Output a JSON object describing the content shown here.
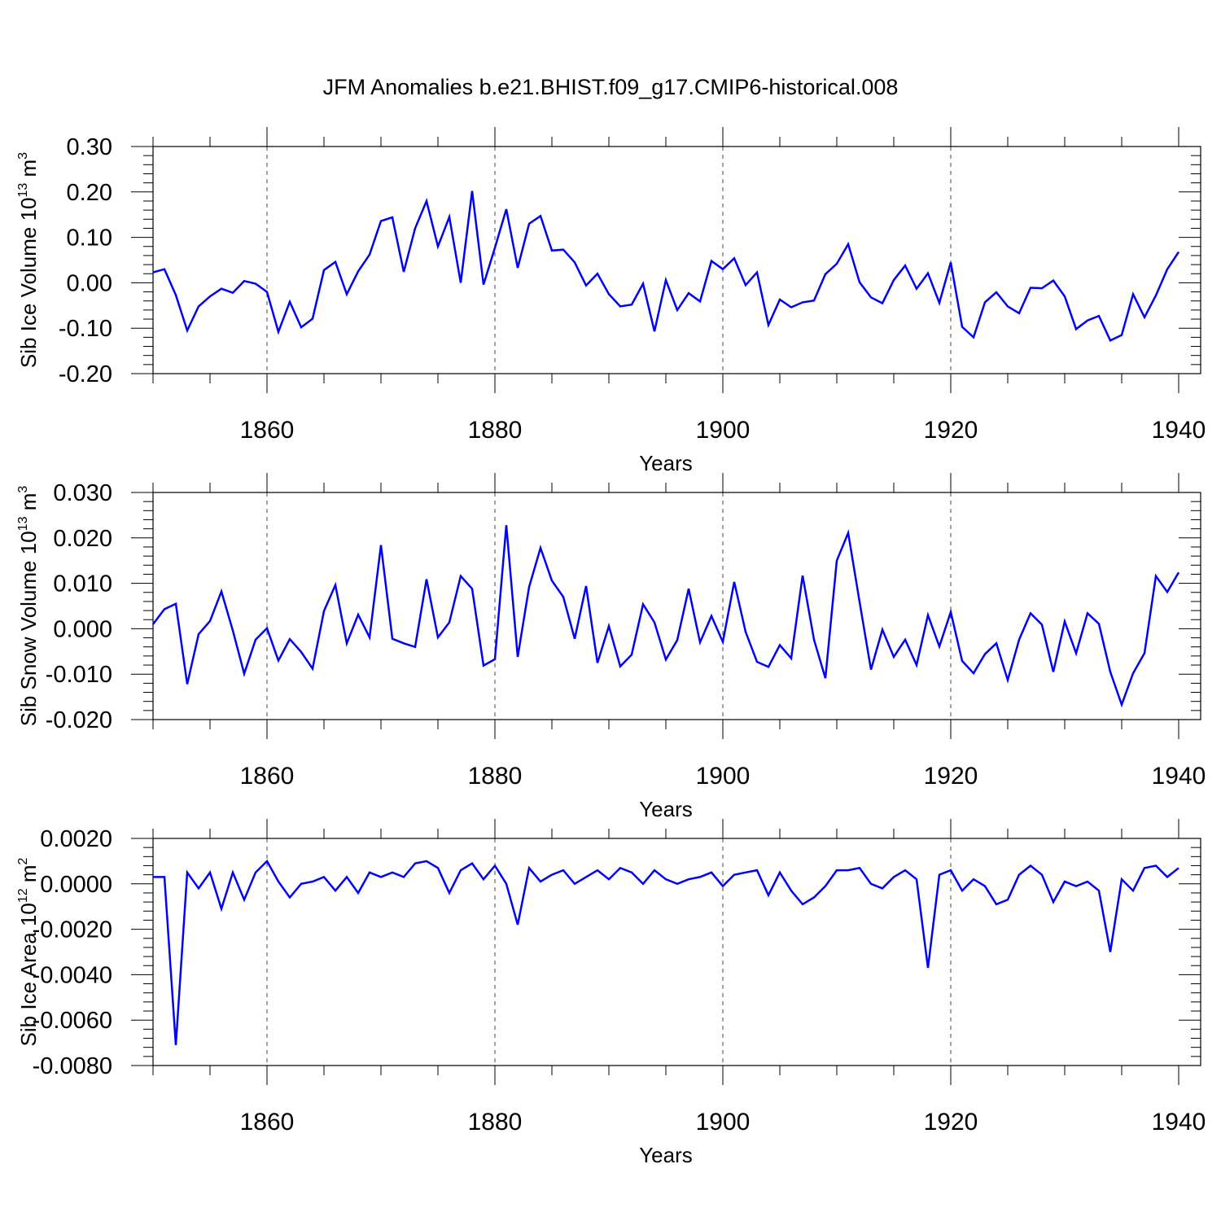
{
  "title": "JFM Anomalies b.e21.BHIST.f09_g17.CMIP6-historical.008",
  "line_color": "#0000ff",
  "chart_data": [
    {
      "type": "line",
      "title": "",
      "xlabel": "Years",
      "ylabel": "Sib Ice Volume 10",
      "ylabel_exp": "13",
      "ylabel_unit": " m",
      "ylabel_unit_exp": "3",
      "xlim": [
        1850,
        1940
      ],
      "ylim": [
        -0.2,
        0.3
      ],
      "xticks": [
        1860,
        1880,
        1900,
        1920,
        1940
      ],
      "xtick_labels": [
        "1860",
        "1880",
        "1900",
        "1920",
        "1940"
      ],
      "yticks": [
        -0.2,
        -0.1,
        0.0,
        0.1,
        0.2,
        0.3
      ],
      "ytick_labels": [
        "-0.20",
        "-0.10",
        "0.00",
        "0.10",
        "0.20",
        "0.30"
      ],
      "grid_x_dashed": true,
      "series": [
        {
          "name": "Sib Ice Volume",
          "x_start": 1850,
          "values": [
            0.023,
            0.03,
            -0.027,
            -0.105,
            -0.052,
            -0.03,
            -0.013,
            -0.022,
            0.004,
            -0.002,
            -0.02,
            -0.108,
            -0.042,
            -0.098,
            -0.079,
            0.028,
            0.046,
            -0.025,
            0.025,
            0.062,
            0.136,
            0.144,
            0.024,
            0.12,
            0.18,
            0.08,
            0.145,
            0.0,
            0.202,
            -0.004,
            0.077,
            0.162,
            0.033,
            0.13,
            0.147,
            0.071,
            0.073,
            0.045,
            -0.006,
            0.02,
            -0.025,
            -0.052,
            -0.048,
            -0.002,
            -0.107,
            0.006,
            -0.06,
            -0.023,
            -0.041,
            0.048,
            0.03,
            0.054,
            -0.005,
            0.023,
            -0.093,
            -0.037,
            -0.054,
            -0.043,
            -0.039,
            0.019,
            0.042,
            0.085,
            0.001,
            -0.032,
            -0.045,
            0.006,
            0.038,
            -0.013,
            0.021,
            -0.044,
            0.045,
            -0.097,
            -0.12,
            -0.043,
            -0.021,
            -0.052,
            -0.067,
            -0.011,
            -0.012,
            0.005,
            -0.03,
            -0.102,
            -0.083,
            -0.073,
            -0.127,
            -0.115,
            -0.025,
            -0.076,
            -0.028,
            0.03,
            0.068
          ]
        }
      ]
    },
    {
      "type": "line",
      "title": "",
      "xlabel": "Years",
      "ylabel": "Sib Snow Volume 10",
      "ylabel_exp": "13",
      "ylabel_unit": " m",
      "ylabel_unit_exp": "3",
      "xlim": [
        1850,
        1940
      ],
      "ylim": [
        -0.02,
        0.03
      ],
      "xticks": [
        1860,
        1880,
        1900,
        1920,
        1940
      ],
      "xtick_labels": [
        "1860",
        "1880",
        "1900",
        "1920",
        "1940"
      ],
      "yticks": [
        -0.02,
        -0.01,
        0.0,
        0.01,
        0.02,
        0.03
      ],
      "ytick_labels": [
        "-0.020",
        "-0.010",
        "0.000",
        "0.010",
        "0.020",
        "0.030"
      ],
      "grid_x_dashed": true,
      "series": [
        {
          "name": "Sib Snow Volume",
          "x_start": 1850,
          "values": [
            0.001,
            0.0043,
            0.0055,
            -0.0122,
            -0.0012,
            0.0017,
            0.0082,
            -0.0004,
            -0.0099,
            -0.0024,
            0.0001,
            -0.007,
            -0.0023,
            -0.0051,
            -0.0088,
            0.0039,
            0.0096,
            -0.0032,
            0.0031,
            -0.0019,
            0.0184,
            -0.0022,
            -0.0032,
            -0.004,
            0.0109,
            -0.0019,
            0.0014,
            0.0116,
            0.0088,
            -0.0081,
            -0.0067,
            0.0228,
            -0.0062,
            0.0092,
            0.0178,
            0.0106,
            0.007,
            -0.0022,
            0.0094,
            -0.0075,
            0.0006,
            -0.0083,
            -0.0057,
            0.0054,
            0.0014,
            -0.0068,
            -0.0025,
            0.0088,
            -0.003,
            0.0028,
            -0.0029,
            0.0103,
            -0.0007,
            -0.0073,
            -0.0084,
            -0.0036,
            -0.0065,
            0.0117,
            -0.0024,
            -0.0109,
            0.015,
            0.0211,
            0.0059,
            -0.009,
            -0.0002,
            -0.0062,
            -0.0024,
            -0.008,
            0.003,
            -0.0039,
            0.0037,
            -0.0071,
            -0.0098,
            -0.0056,
            -0.0032,
            -0.0113,
            -0.0024,
            0.0034,
            0.0009,
            -0.0095,
            0.0016,
            -0.0054,
            0.0034,
            0.0011,
            -0.0095,
            -0.0167,
            -0.0098,
            -0.0054,
            0.0116,
            0.0081,
            0.0124
          ]
        }
      ]
    },
    {
      "type": "line",
      "title": "",
      "xlabel": "Years",
      "ylabel": "Sib Ice Area 10",
      "ylabel_exp": "12",
      "ylabel_unit": " m",
      "ylabel_unit_exp": "2",
      "xlim": [
        1850,
        1940
      ],
      "ylim": [
        -0.008,
        0.002
      ],
      "xticks": [
        1860,
        1880,
        1900,
        1920,
        1940
      ],
      "xtick_labels": [
        "1860",
        "1880",
        "1900",
        "1920",
        "1940"
      ],
      "yticks": [
        -0.008,
        -0.006,
        -0.004,
        -0.002,
        0.0,
        0.002
      ],
      "ytick_labels": [
        "-0.0080",
        "-0.0060",
        "-0.0040",
        "-0.0020",
        "0.0000",
        "0.0020"
      ],
      "grid_x_dashed": true,
      "series": [
        {
          "name": "Sib Ice Area",
          "x_start": 1850,
          "values": [
            0.0003,
            0.0003,
            -0.0071,
            0.0005,
            -0.0002,
            0.0005,
            -0.0011,
            0.0005,
            -0.0007,
            0.0005,
            0.001,
            0.0001,
            -0.0006,
            0.0,
            0.0001,
            0.0003,
            -0.0003,
            0.0003,
            -0.0004,
            0.0005,
            0.0003,
            0.0005,
            0.0003,
            0.0009,
            0.001,
            0.0007,
            -0.0004,
            0.0006,
            0.0009,
            0.0002,
            0.0008,
            0.0,
            -0.0018,
            0.0007,
            0.0001,
            0.0004,
            0.0006,
            0.0,
            0.0003,
            0.0006,
            0.0002,
            0.0007,
            0.0005,
            0.0,
            0.0006,
            0.0002,
            0.0,
            0.0002,
            0.0003,
            0.0005,
            -0.0001,
            0.0004,
            0.0005,
            0.0006,
            -0.0005,
            0.0005,
            -0.0003,
            -0.0009,
            -0.0006,
            -0.0001,
            0.0006,
            0.0006,
            0.0007,
            0.0,
            -0.0002,
            0.0003,
            0.0006,
            0.0002,
            -0.0037,
            0.0004,
            0.0006,
            -0.0003,
            0.0002,
            -0.0001,
            -0.0009,
            -0.0007,
            0.0004,
            0.0008,
            0.0004,
            -0.0008,
            0.0001,
            -0.0001,
            0.0001,
            -0.0003,
            -0.003,
            0.0002,
            -0.0003,
            0.0007,
            0.0008,
            0.0003,
            0.0007
          ]
        }
      ]
    }
  ]
}
